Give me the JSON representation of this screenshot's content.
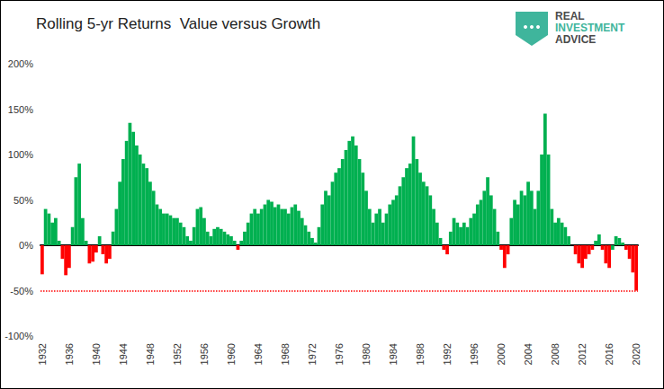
{
  "chart_data": {
    "type": "bar",
    "title": "Rolling 5-yr Returns  Value versus Growth",
    "logo": [
      "REAL",
      "INVESTMENT",
      "ADVICE"
    ],
    "categories": [
      "1932",
      null,
      null,
      null,
      null,
      null,
      null,
      null,
      "1936",
      null,
      null,
      null,
      null,
      null,
      null,
      null,
      "1940",
      null,
      null,
      null,
      null,
      null,
      null,
      null,
      "1944",
      null,
      null,
      null,
      null,
      null,
      null,
      null,
      "1948",
      null,
      null,
      null,
      null,
      null,
      null,
      null,
      "1952",
      null,
      null,
      null,
      null,
      null,
      null,
      null,
      "1956",
      null,
      null,
      null,
      null,
      null,
      null,
      null,
      "1960",
      null,
      null,
      null,
      null,
      null,
      null,
      null,
      "1964",
      null,
      null,
      null,
      null,
      null,
      null,
      null,
      "1968",
      null,
      null,
      null,
      null,
      null,
      null,
      null,
      "1972",
      null,
      null,
      null,
      null,
      null,
      null,
      null,
      "1976",
      null,
      null,
      null,
      null,
      null,
      null,
      null,
      "1980",
      null,
      null,
      null,
      null,
      null,
      null,
      null,
      "1984",
      null,
      null,
      null,
      null,
      null,
      null,
      null,
      "1988",
      null,
      null,
      null,
      null,
      null,
      null,
      null,
      "1992",
      null,
      null,
      null,
      null,
      null,
      null,
      null,
      "1996",
      null,
      null,
      null,
      null,
      null,
      null,
      null,
      "2000",
      null,
      null,
      null,
      null,
      null,
      null,
      null,
      "2004",
      null,
      null,
      null,
      null,
      null,
      null,
      null,
      "2008",
      null,
      null,
      null,
      null,
      null,
      null,
      null,
      "2012",
      null,
      null,
      null,
      null,
      null,
      null,
      null,
      "2016",
      null,
      null,
      null,
      null,
      null,
      null,
      null,
      "2020"
    ],
    "values": [
      -32,
      40,
      35,
      25,
      30,
      5,
      -15,
      -33,
      -25,
      20,
      75,
      90,
      30,
      5,
      -20,
      -18,
      -8,
      10,
      -10,
      -20,
      -15,
      15,
      40,
      70,
      95,
      115,
      135,
      125,
      110,
      100,
      90,
      85,
      70,
      60,
      45,
      40,
      35,
      35,
      33,
      30,
      30,
      25,
      20,
      10,
      5,
      20,
      40,
      42,
      30,
      15,
      10,
      18,
      20,
      18,
      15,
      12,
      10,
      5,
      -5,
      5,
      15,
      25,
      35,
      40,
      35,
      40,
      45,
      50,
      48,
      42,
      45,
      40,
      40,
      35,
      42,
      45,
      38,
      30,
      22,
      15,
      8,
      3,
      20,
      45,
      60,
      55,
      70,
      80,
      85,
      95,
      105,
      115,
      120,
      110,
      95,
      80,
      60,
      40,
      25,
      35,
      40,
      25,
      35,
      45,
      50,
      55,
      65,
      75,
      85,
      90,
      120,
      95,
      80,
      70,
      65,
      55,
      40,
      25,
      8,
      -5,
      -10,
      15,
      30,
      25,
      20,
      25,
      20,
      30,
      35,
      45,
      50,
      60,
      75,
      55,
      40,
      15,
      -5,
      -25,
      -10,
      30,
      50,
      45,
      60,
      55,
      70,
      60,
      40,
      60,
      100,
      145,
      100,
      40,
      25,
      30,
      25,
      20,
      10,
      0,
      -10,
      -20,
      -25,
      -15,
      -10,
      -5,
      5,
      12,
      -5,
      -20,
      -25,
      -5,
      10,
      8,
      3,
      -5,
      -15,
      -30,
      -50
    ],
    "colors": [
      "#ff0000",
      "#00b050",
      "#00b050",
      "#00b050",
      "#00b050",
      "#00b050",
      "#ff0000",
      "#ff0000",
      "#ff0000",
      "#00b050",
      "#00b050",
      "#00b050",
      "#00b050",
      "#00b050",
      "#ff0000",
      "#ff0000",
      "#ff0000",
      "#00b050",
      "#ff0000",
      "#ff0000",
      "#ff0000",
      "#00b050",
      "#00b050",
      "#00b050",
      "#00b050",
      "#00b050",
      "#00b050",
      "#00b050",
      "#00b050",
      "#00b050",
      "#00b050",
      "#00b050",
      "#00b050",
      "#00b050",
      "#00b050",
      "#00b050",
      "#00b050",
      "#00b050",
      "#00b050",
      "#00b050",
      "#00b050",
      "#00b050",
      "#00b050",
      "#00b050",
      "#00b050",
      "#00b050",
      "#00b050",
      "#00b050",
      "#00b050",
      "#00b050",
      "#00b050",
      "#00b050",
      "#00b050",
      "#00b050",
      "#00b050",
      "#00b050",
      "#00b050",
      "#00b050",
      "#ff0000",
      "#00b050",
      "#00b050",
      "#00b050",
      "#00b050",
      "#00b050",
      "#00b050",
      "#00b050",
      "#00b050",
      "#00b050",
      "#00b050",
      "#00b050",
      "#00b050",
      "#00b050",
      "#00b050",
      "#00b050",
      "#00b050",
      "#00b050",
      "#00b050",
      "#00b050",
      "#00b050",
      "#00b050",
      "#00b050",
      "#00b050",
      "#00b050",
      "#00b050",
      "#00b050",
      "#00b050",
      "#00b050",
      "#00b050",
      "#00b050",
      "#00b050",
      "#00b050",
      "#00b050",
      "#00b050",
      "#00b050",
      "#00b050",
      "#00b050",
      "#00b050",
      "#00b050",
      "#00b050",
      "#00b050",
      "#00b050",
      "#00b050",
      "#00b050",
      "#00b050",
      "#00b050",
      "#00b050",
      "#00b050",
      "#00b050",
      "#00b050",
      "#00b050",
      "#00b050",
      "#00b050",
      "#00b050",
      "#00b050",
      "#00b050",
      "#00b050",
      "#00b050",
      "#00b050",
      "#00b050",
      "#ff0000",
      "#ff0000",
      "#00b050",
      "#00b050",
      "#00b050",
      "#00b050",
      "#00b050",
      "#00b050",
      "#00b050",
      "#00b050",
      "#00b050",
      "#00b050",
      "#00b050",
      "#00b050",
      "#00b050",
      "#00b050",
      "#00b050",
      "#ff0000",
      "#ff0000",
      "#ff0000",
      "#00b050",
      "#00b050",
      "#00b050",
      "#00b050",
      "#00b050",
      "#00b050",
      "#00b050",
      "#00b050",
      "#00b050",
      "#00b050",
      "#00b050",
      "#00b050",
      "#00b050",
      "#00b050",
      "#00b050",
      "#00b050",
      "#00b050",
      "#00b050",
      "#00b050",
      "#ff0000",
      "#ff0000",
      "#ff0000",
      "#ff0000",
      "#ff0000",
      "#ff0000",
      "#00b050",
      "#00b050",
      "#ff0000",
      "#ff0000",
      "#ff0000",
      "#00b050",
      "#00b050",
      "#00b050",
      "#00b050",
      "#ff0000",
      "#ff0000",
      "#ff0000",
      "#ff0000"
    ],
    "ylim": [
      -100,
      200
    ],
    "yticks": [
      {
        "value": -100,
        "label": "-100%"
      },
      {
        "value": -50,
        "label": "-50%"
      },
      {
        "value": 0,
        "label": "0%"
      },
      {
        "value": 50,
        "label": "50%"
      },
      {
        "value": 100,
        "label": "100%"
      },
      {
        "value": 150,
        "label": "150%"
      },
      {
        "value": 200,
        "label": "200%"
      }
    ],
    "reference_line": {
      "value": -50,
      "color": "#ff0000",
      "line_style": "dotted"
    },
    "grid": false
  }
}
